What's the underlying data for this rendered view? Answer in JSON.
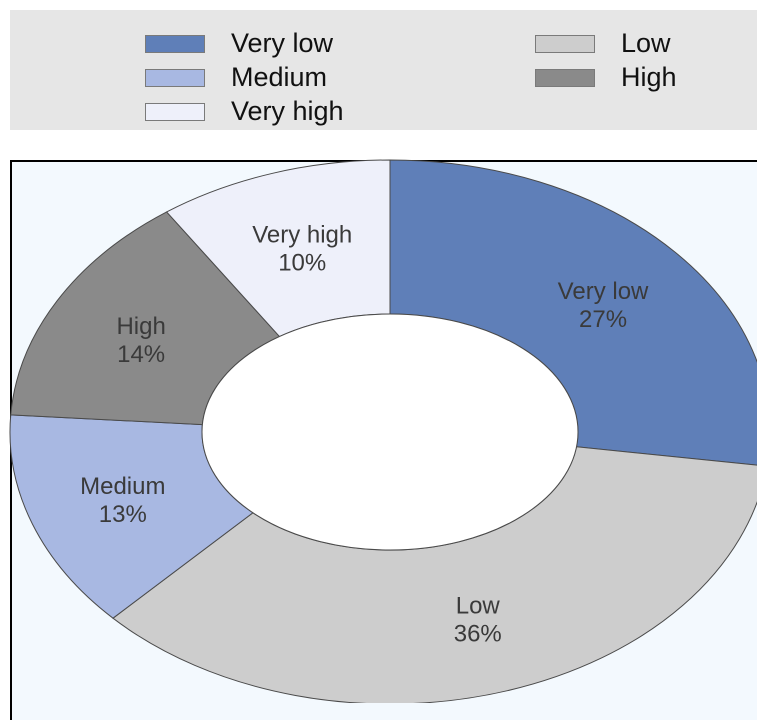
{
  "chart_data": {
    "type": "pie",
    "donut": true,
    "legend_position": "top",
    "slices": [
      {
        "label": "Very low",
        "value": 27,
        "value_label": "27%",
        "color": "#5f7fb8"
      },
      {
        "label": "Low",
        "value": 36,
        "value_label": "36%",
        "color": "#cdcdcd"
      },
      {
        "label": "Medium",
        "value": 13,
        "value_label": "13%",
        "color": "#a8b8e2"
      },
      {
        "label": "High",
        "value": 14,
        "value_label": "14%",
        "color": "#8a8a8a"
      },
      {
        "label": "Very high",
        "value": 10,
        "value_label": "10%",
        "color": "#eef0fa"
      }
    ],
    "legend": [
      {
        "label": "Very low",
        "color": "#5f7fb8"
      },
      {
        "label": "Low",
        "color": "#cdcdcd"
      },
      {
        "label": "Medium",
        "color": "#a8b8e2"
      },
      {
        "label": "High",
        "color": "#8a8a8a"
      },
      {
        "label": "Very high",
        "color": "#eef0fa"
      }
    ]
  }
}
